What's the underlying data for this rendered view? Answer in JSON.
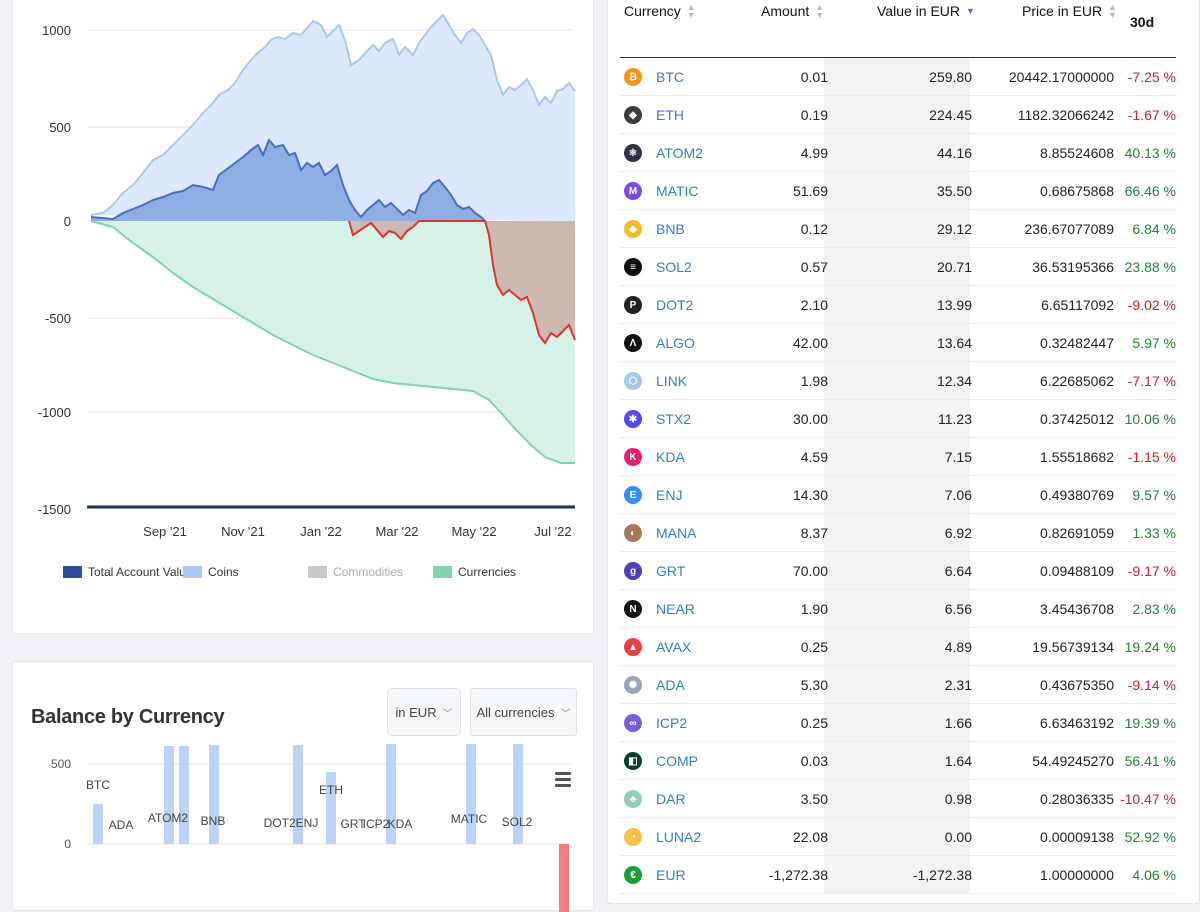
{
  "account_chart": {
    "y_ticks": [
      "1000",
      "500",
      "0",
      "-500",
      "-1000",
      "-1500"
    ],
    "x_ticks": [
      "Sep '21",
      "Nov '21",
      "Jan '22",
      "Mar '22",
      "May '22",
      "Jul '22"
    ],
    "legend": [
      {
        "label": "Total Account Value",
        "color": "#2b4fa3",
        "enabled": true
      },
      {
        "label": "Coins",
        "color": "#aac6f3",
        "enabled": true
      },
      {
        "label": "Commodities",
        "color": "#c9c9c9",
        "enabled": false
      },
      {
        "label": "Currencies",
        "color": "#7fd3ae",
        "enabled": true
      }
    ],
    "colors": {
      "coins_fill": "#dce8fc",
      "coins_line": "#aac6f3",
      "total_fill": "#8eaee3",
      "total_line": "#4a6fbf",
      "currencies_fill": "#d6f2e6",
      "currencies_line": "#7fd3ae",
      "negative_line": "#d8362e",
      "negative_fill": "#cbb8ae",
      "baseline": "#1c2e5e"
    }
  },
  "balance_by_currency": {
    "title": "Balance by Currency",
    "unit_select": "in EUR",
    "currency_select": "All currencies",
    "y_ticks": [
      "500",
      "0"
    ],
    "labels": [
      "BTC",
      "ADA",
      "ATOM2",
      "BNB",
      "DOT2ENJ",
      "ETH",
      "GRT",
      "ICP2",
      "KDA",
      "MATIC",
      "SOL2"
    ]
  },
  "table": {
    "headers": {
      "currency": "Currency",
      "amount": "Amount",
      "value": "Value in EUR",
      "price": "Price in EUR",
      "change": "30d"
    },
    "rows": [
      {
        "currency": "BTC",
        "amount": "0.01",
        "value": "259.80",
        "price": "20442.17000000",
        "change": "-7.25 %",
        "icon": "btc-icon",
        "icon_color": "#f7931a",
        "glyph": "₿"
      },
      {
        "currency": "ETH",
        "amount": "0.19",
        "value": "224.45",
        "price": "1182.32066242",
        "change": "-1.67 %",
        "icon": "eth-icon",
        "icon_color": "#3c3c3d",
        "glyph": "◆"
      },
      {
        "currency": "ATOM2",
        "amount": "4.99",
        "value": "44.16",
        "price": "8.85524608",
        "change": "40.13 %",
        "icon": "atom-icon",
        "icon_color": "#2e3148",
        "glyph": "⚛"
      },
      {
        "currency": "MATIC",
        "amount": "51.69",
        "value": "35.50",
        "price": "0.68675868",
        "change": "66.46 %",
        "icon": "matic-icon",
        "icon_color": "#8247e5",
        "glyph": "M"
      },
      {
        "currency": "BNB",
        "amount": "0.12",
        "value": "29.12",
        "price": "236.67077089",
        "change": "6.84 %",
        "icon": "bnb-icon",
        "icon_color": "#f3ba2f",
        "glyph": "◈"
      },
      {
        "currency": "SOL2",
        "amount": "0.57",
        "value": "20.71",
        "price": "36.53195366",
        "change": "23.88 %",
        "icon": "sol-icon",
        "icon_color": "#111111",
        "glyph": "≡"
      },
      {
        "currency": "DOT2",
        "amount": "2.10",
        "value": "13.99",
        "price": "6.65117092",
        "change": "-9.02 %",
        "icon": "dot-icon",
        "icon_color": "#222222",
        "glyph": "P"
      },
      {
        "currency": "ALGO",
        "amount": "42.00",
        "value": "13.64",
        "price": "0.32482447",
        "change": "5.97 %",
        "icon": "algo-icon",
        "icon_color": "#111111",
        "glyph": "Λ"
      },
      {
        "currency": "LINK",
        "amount": "1.98",
        "value": "12.34",
        "price": "6.22685062",
        "change": "-7.17 %",
        "icon": "link-icon",
        "icon_color": "#a7c8ee",
        "glyph": "⬡"
      },
      {
        "currency": "STX2",
        "amount": "30.00",
        "value": "11.23",
        "price": "0.37425012",
        "change": "10.06 %",
        "icon": "stx-icon",
        "icon_color": "#5546ff",
        "glyph": "✱"
      },
      {
        "currency": "KDA",
        "amount": "4.59",
        "value": "7.15",
        "price": "1.55518682",
        "change": "-1.15 %",
        "icon": "kda-icon",
        "icon_color": "#e5206e",
        "glyph": "K"
      },
      {
        "currency": "ENJ",
        "amount": "14.30",
        "value": "7.06",
        "price": "0.49380769",
        "change": "9.57 %",
        "icon": "enj-icon",
        "icon_color": "#2f8fff",
        "glyph": "E"
      },
      {
        "currency": "MANA",
        "amount": "8.37",
        "value": "6.92",
        "price": "0.82691059",
        "change": "1.33 %",
        "icon": "mana-icon",
        "icon_color": "#a9775a",
        "glyph": "◐"
      },
      {
        "currency": "GRT",
        "amount": "70.00",
        "value": "6.64",
        "price": "0.09488109",
        "change": "-9.17 %",
        "icon": "grt-icon",
        "icon_color": "#4d3fb8",
        "glyph": "g"
      },
      {
        "currency": "NEAR",
        "amount": "1.90",
        "value": "6.56",
        "price": "3.45436708",
        "change": "2.83 %",
        "icon": "near-icon",
        "icon_color": "#111111",
        "glyph": "N"
      },
      {
        "currency": "AVAX",
        "amount": "0.25",
        "value": "4.89",
        "price": "19.56739134",
        "change": "19.24 %",
        "icon": "avax-icon",
        "icon_color": "#e84142",
        "glyph": "▲"
      },
      {
        "currency": "ADA",
        "amount": "5.30",
        "value": "2.31",
        "price": "0.43675350",
        "change": "-9.14 %",
        "icon": "ada-icon",
        "icon_color": "#9aa3b5",
        "glyph": "✺"
      },
      {
        "currency": "ICP2",
        "amount": "0.25",
        "value": "1.66",
        "price": "6.63463192",
        "change": "19.39 %",
        "icon": "icp-icon",
        "icon_color": "#7a5ce0",
        "glyph": "∞"
      },
      {
        "currency": "COMP",
        "amount": "0.03",
        "value": "1.64",
        "price": "54.49245270",
        "change": "56.41 %",
        "icon": "comp-icon",
        "icon_color": "#0b3d2e",
        "glyph": "◧"
      },
      {
        "currency": "DAR",
        "amount": "3.50",
        "value": "0.98",
        "price": "0.28036335",
        "change": "-10.47 %",
        "icon": "dar-icon",
        "icon_color": "#8fd1b6",
        "glyph": "♣"
      },
      {
        "currency": "LUNA2",
        "amount": "22.08",
        "value": "0.00",
        "price": "0.00009138",
        "change": "52.92 %",
        "icon": "luna-icon",
        "icon_color": "#f6c246",
        "glyph": "◔"
      },
      {
        "currency": "EUR",
        "amount": "-1,272.38",
        "value": "-1,272.38",
        "price": "1.00000000",
        "change": "4.06 %",
        "icon": "eur-icon",
        "icon_color": "#1f9d3a",
        "glyph": "€"
      }
    ]
  }
}
